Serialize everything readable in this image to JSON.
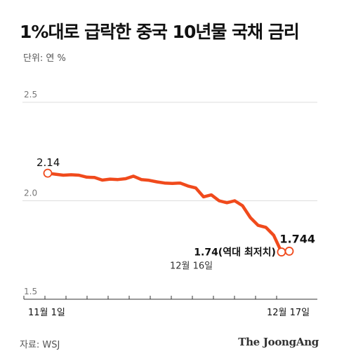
{
  "title": "1%대로 급락한 중국 10년물 국채 금리",
  "unit_label": "단위: 연 %",
  "source": "자료: WSJ",
  "logo_text": "The JoongAng",
  "colors": {
    "line": "#f04a1c",
    "grid": "#dddddd",
    "axis": "#333333",
    "text": "#111111",
    "muted": "#666666"
  },
  "chart_data": {
    "type": "line",
    "title": "1%대로 급락한 중국 10년물 국채 금리",
    "ylabel": "단위: 연 %",
    "ylim": [
      1.5,
      2.5
    ],
    "yticks": [
      "2.5",
      "2.0",
      "1.5"
    ],
    "x_tick_labels": [
      "11월 1일",
      "12월 17일"
    ],
    "grid": true,
    "series": [
      {
        "values": [
          2.14,
          2.135,
          2.13,
          2.132,
          2.13,
          2.12,
          2.118,
          2.105,
          2.11,
          2.108,
          2.112,
          2.125,
          2.108,
          2.104,
          2.096,
          2.09,
          2.088,
          2.09,
          2.075,
          2.065,
          2.02,
          2.03,
          2.0,
          1.99,
          2.0,
          1.975,
          1.915,
          1.875,
          1.865,
          1.825,
          1.74,
          1.744
        ]
      }
    ],
    "annotations": [
      {
        "label": "2.14",
        "index": 0
      },
      {
        "label": "1.74(역대 최저치)",
        "sublabel": "12월 16일",
        "index": 30
      },
      {
        "label": "1.744",
        "index": 31
      }
    ]
  }
}
